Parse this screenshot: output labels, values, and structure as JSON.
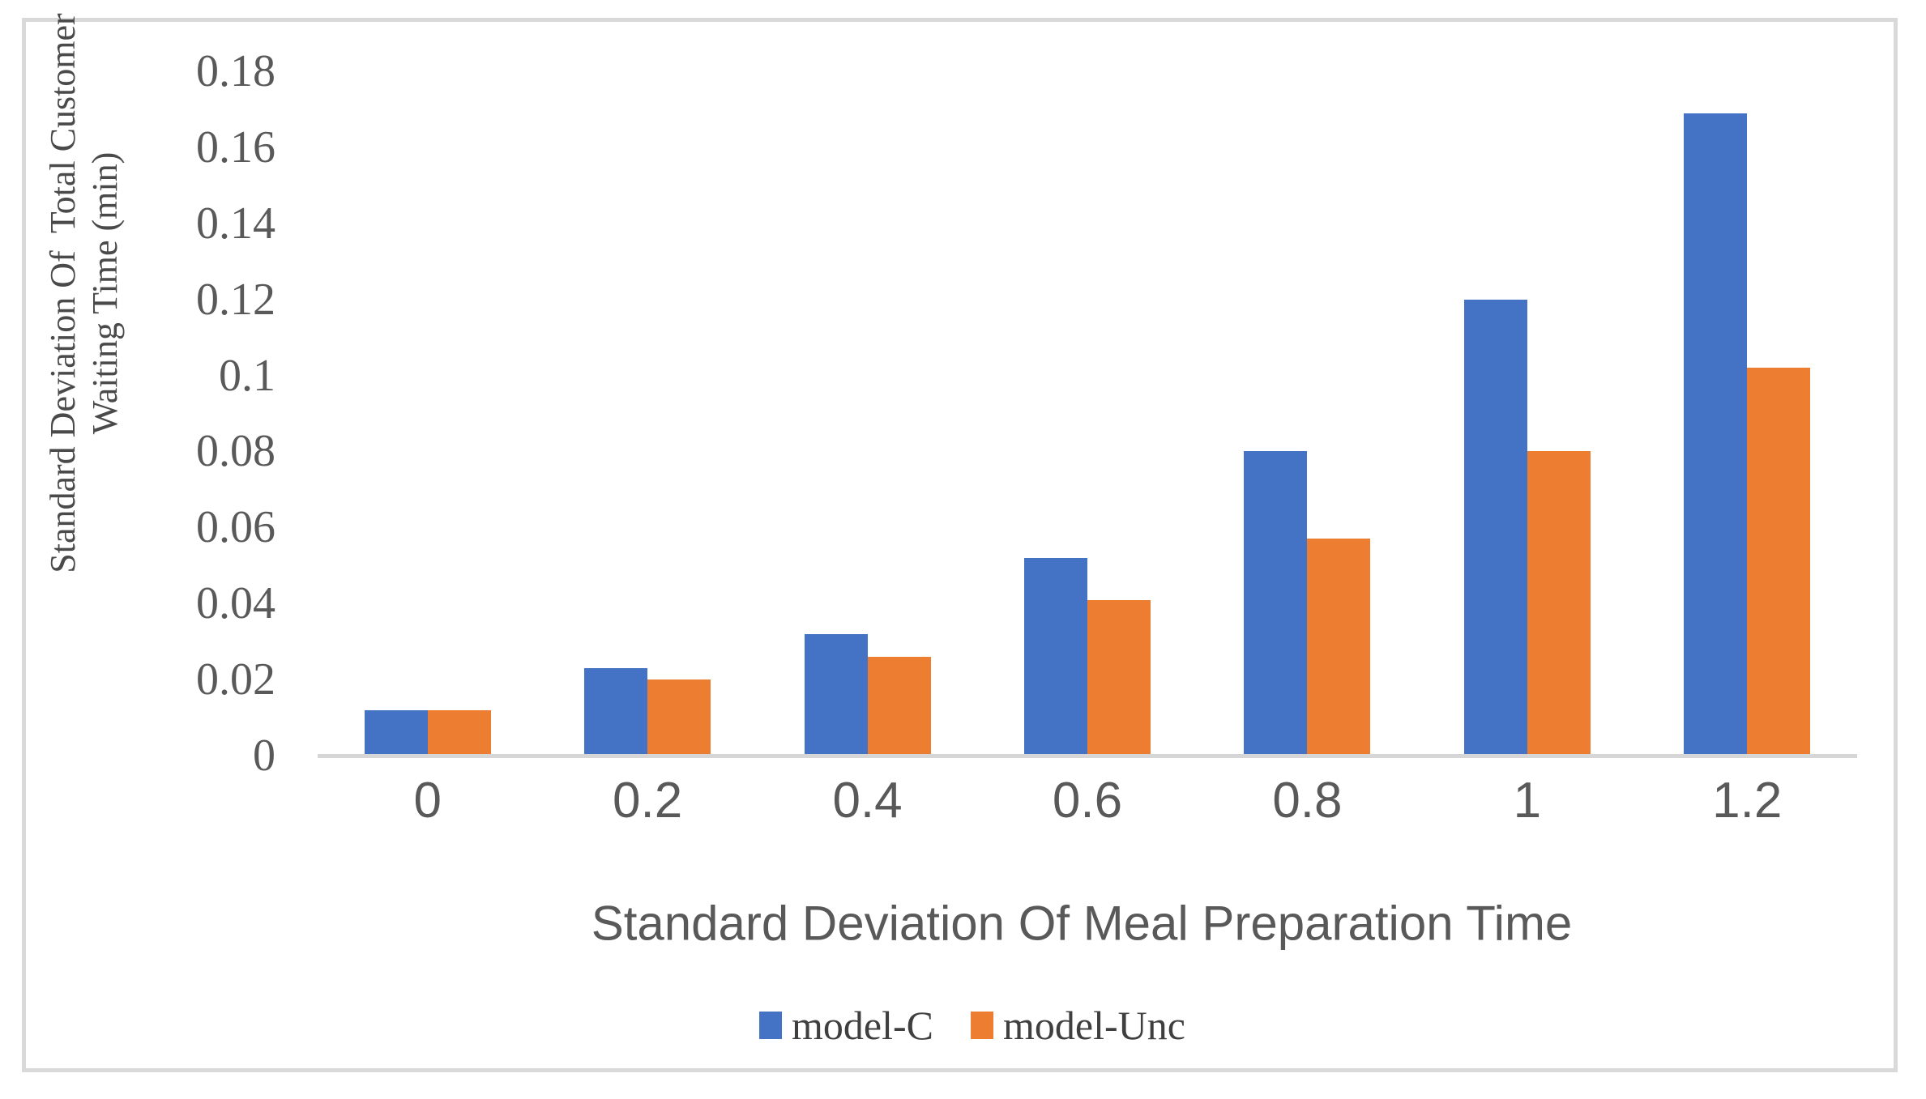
{
  "figure": {
    "background_color": "#FFFFFF",
    "border_color": "#D9D9D9",
    "axis_line_color": "#D6D6D6",
    "tick_text_color": "#595959"
  },
  "chart_data": {
    "type": "bar",
    "title": "",
    "xlabel": "Standard Deviation Of Meal Preparation Time",
    "ylabel": "Standard Deviation Of  Total Customer\nWaiting Time (min)",
    "categories": [
      "0",
      "0.2",
      "0.4",
      "0.6",
      "0.8",
      "1",
      "1.2"
    ],
    "series": [
      {
        "name": "model-C",
        "color": "#4472C4",
        "values": [
          0.012,
          0.023,
          0.032,
          0.052,
          0.08,
          0.12,
          0.169
        ]
      },
      {
        "name": "model-Unc",
        "color": "#ED7D31",
        "values": [
          0.012,
          0.02,
          0.026,
          0.041,
          0.057,
          0.08,
          0.102
        ]
      }
    ],
    "ylim": [
      0,
      0.18
    ],
    "yticks": [
      "0",
      "0.02",
      "0.04",
      "0.06",
      "0.08",
      "0.1",
      "0.12",
      "0.14",
      "0.16",
      "0.18"
    ],
    "grid": false,
    "legend_position": "bottom-center"
  }
}
